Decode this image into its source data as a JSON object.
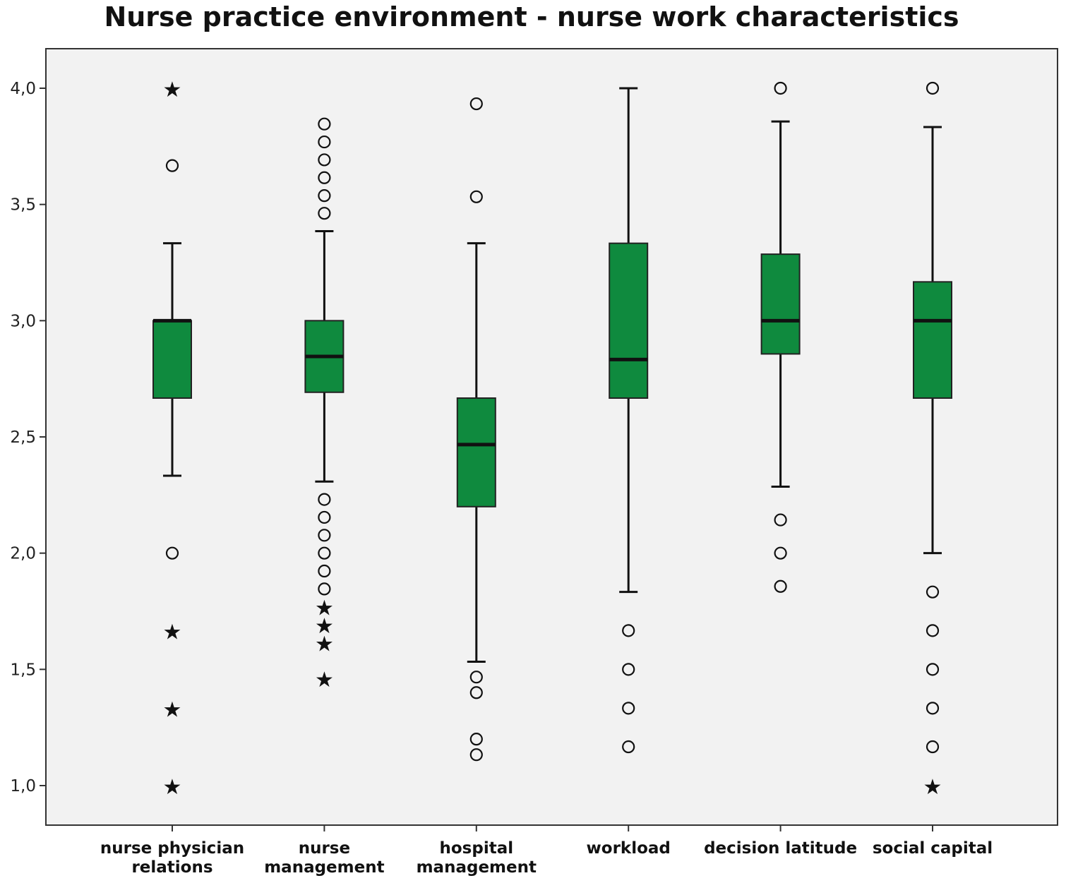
{
  "chart_data": {
    "type": "boxplot",
    "title": "Nurse practice environment - nurse work characteristics",
    "xlabel": "",
    "ylabel": "",
    "ylim": [
      0.83,
      4.17
    ],
    "y_ticks": [
      {
        "value": 1.0,
        "label": "1,0"
      },
      {
        "value": 1.5,
        "label": "1,5"
      },
      {
        "value": 2.0,
        "label": "2,0"
      },
      {
        "value": 2.5,
        "label": "2,5"
      },
      {
        "value": 3.0,
        "label": "3,0"
      },
      {
        "value": 3.5,
        "label": "3,5"
      },
      {
        "value": 4.0,
        "label": "4,0"
      }
    ],
    "grid": false,
    "box_color": "#0f8a3e",
    "background_color": "#f2f2f2",
    "categories": [
      {
        "label_lines": [
          "nurse physician",
          "relations"
        ],
        "whisker_low": 2.333,
        "q1": 2.667,
        "median": 3.0,
        "q3": 3.0,
        "whisker_high": 3.333,
        "outliers": [
          3.667,
          2.0
        ],
        "extremes": [
          4.0,
          1.667,
          1.333,
          1.0
        ]
      },
      {
        "label_lines": [
          "nurse",
          "management"
        ],
        "whisker_low": 2.308,
        "q1": 2.692,
        "median": 2.846,
        "q3": 3.0,
        "whisker_high": 3.385,
        "outliers": [
          3.846,
          3.769,
          3.692,
          3.615,
          3.538,
          3.462,
          2.231,
          2.154,
          2.077,
          2.0,
          1.923,
          1.846
        ],
        "extremes": [
          1.769,
          1.692,
          1.615,
          1.462
        ]
      },
      {
        "label_lines": [
          "hospital",
          "management"
        ],
        "whisker_low": 1.533,
        "q1": 2.2,
        "median": 2.467,
        "q3": 2.667,
        "whisker_high": 3.333,
        "outliers": [
          3.933,
          3.533,
          1.467,
          1.4,
          1.2,
          1.133
        ],
        "extremes": []
      },
      {
        "label_lines": [
          "workload"
        ],
        "whisker_low": 1.833,
        "q1": 2.667,
        "median": 2.833,
        "q3": 3.333,
        "whisker_high": 4.0,
        "outliers": [
          1.667,
          1.5,
          1.333,
          1.167
        ],
        "extremes": []
      },
      {
        "label_lines": [
          "decision latitude"
        ],
        "whisker_low": 2.286,
        "q1": 2.857,
        "median": 3.0,
        "q3": 3.286,
        "whisker_high": 3.857,
        "outliers": [
          4.0,
          2.143,
          2.0,
          1.857
        ],
        "extremes": []
      },
      {
        "label_lines": [
          "social capital"
        ],
        "whisker_low": 2.0,
        "q1": 2.667,
        "median": 3.0,
        "q3": 3.167,
        "whisker_high": 3.833,
        "outliers": [
          4.0,
          1.833,
          1.667,
          1.5,
          1.333,
          1.167
        ],
        "extremes": [
          1.0
        ]
      }
    ]
  }
}
